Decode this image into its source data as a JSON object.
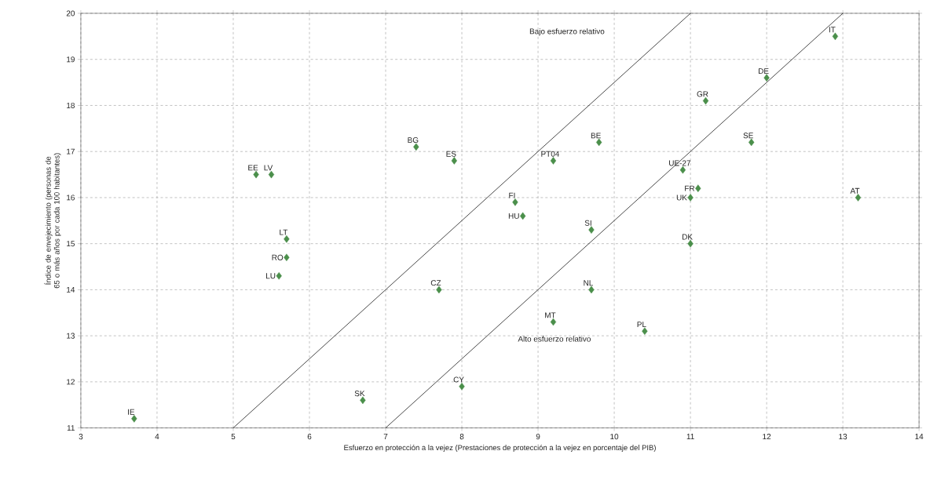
{
  "chart_data": {
    "type": "scatter",
    "xlabel": "Esfuerzo en protección a la vejez (Prestaciones de protección a la vejez en porcentaje del PIB)",
    "ylabel": "Índice de envejecimiento (personas de 65 o más años por cada 100 habitantes)",
    "xlim": [
      3,
      14
    ],
    "ylim": [
      11,
      20
    ],
    "xticks": [
      3,
      4,
      5,
      6,
      7,
      8,
      9,
      10,
      11,
      12,
      13,
      14
    ],
    "yticks": [
      11,
      12,
      13,
      14,
      15,
      16,
      17,
      18,
      19,
      20
    ],
    "grid": true,
    "marker": "diamond",
    "series": [
      {
        "color": "#4b8f4b",
        "x": [
          3.7,
          6.7,
          8.0,
          9.2,
          10.4,
          9.7,
          7.7,
          5.6,
          5.7,
          5.7,
          5.3,
          5.5,
          7.4,
          7.9,
          9.2,
          9.8,
          8.7,
          8.8,
          9.7,
          11.0,
          11.0,
          11.1,
          10.9,
          11.8,
          11.2,
          12.0,
          12.9,
          13.2
        ],
        "values": [
          11.2,
          11.6,
          11.9,
          13.3,
          13.1,
          14.0,
          14.0,
          14.3,
          14.7,
          15.1,
          16.5,
          16.5,
          17.1,
          16.8,
          16.8,
          17.2,
          15.9,
          15.6,
          15.3,
          15.0,
          16.0,
          16.2,
          16.6,
          17.2,
          18.1,
          18.6,
          19.5,
          16.0
        ]
      },
      {
        "type": "line",
        "marker": "none",
        "color": "#1a1a1a",
        "x": [
          5,
          11
        ],
        "values": [
          11,
          20
        ]
      },
      {
        "type": "line",
        "marker": "none",
        "color": "#1a1a1a",
        "x": [
          7,
          13
        ],
        "values": [
          11,
          20
        ]
      }
    ],
    "annotations": [
      {
        "text": "IE",
        "x": 3.7,
        "y": 11.2
      },
      {
        "text": "SK",
        "x": 6.7,
        "y": 11.6
      },
      {
        "text": "CY",
        "x": 8.0,
        "y": 11.9
      },
      {
        "text": "MT",
        "x": 9.2,
        "y": 13.3
      },
      {
        "text": "PL",
        "x": 10.4,
        "y": 13.1
      },
      {
        "text": "NL",
        "x": 9.7,
        "y": 14.0
      },
      {
        "text": "CZ",
        "x": 7.7,
        "y": 14.0
      },
      {
        "text": "LU",
        "x": 5.6,
        "y": 14.3
      },
      {
        "text": "RO",
        "x": 5.7,
        "y": 14.7
      },
      {
        "text": "LT",
        "x": 5.7,
        "y": 15.1
      },
      {
        "text": "EE",
        "x": 5.3,
        "y": 16.5
      },
      {
        "text": "LV",
        "x": 5.5,
        "y": 16.5
      },
      {
        "text": "BG",
        "x": 7.4,
        "y": 17.1
      },
      {
        "text": "ES",
        "x": 7.9,
        "y": 16.8
      },
      {
        "text": "PT04",
        "x": 9.2,
        "y": 16.8
      },
      {
        "text": "BE",
        "x": 9.8,
        "y": 17.2
      },
      {
        "text": "FI",
        "x": 8.7,
        "y": 15.9
      },
      {
        "text": "HU",
        "x": 8.8,
        "y": 15.6
      },
      {
        "text": "SI",
        "x": 9.7,
        "y": 15.3
      },
      {
        "text": "DK",
        "x": 11.0,
        "y": 15.0
      },
      {
        "text": "UK",
        "x": 11.0,
        "y": 16.0
      },
      {
        "text": "FR",
        "x": 11.1,
        "y": 16.2
      },
      {
        "text": "UE-27",
        "x": 10.9,
        "y": 16.6
      },
      {
        "text": "SE",
        "x": 11.8,
        "y": 17.2
      },
      {
        "text": "GR",
        "x": 11.2,
        "y": 18.1
      },
      {
        "text": "DE",
        "x": 12.0,
        "y": 18.6
      },
      {
        "text": "IT",
        "x": 12.9,
        "y": 19.5
      },
      {
        "text": "AT",
        "x": 13.2,
        "y": 16.0
      },
      "Bajo esfuerzo relativo",
      "Alto esfuerzo relativo"
    ]
  }
}
